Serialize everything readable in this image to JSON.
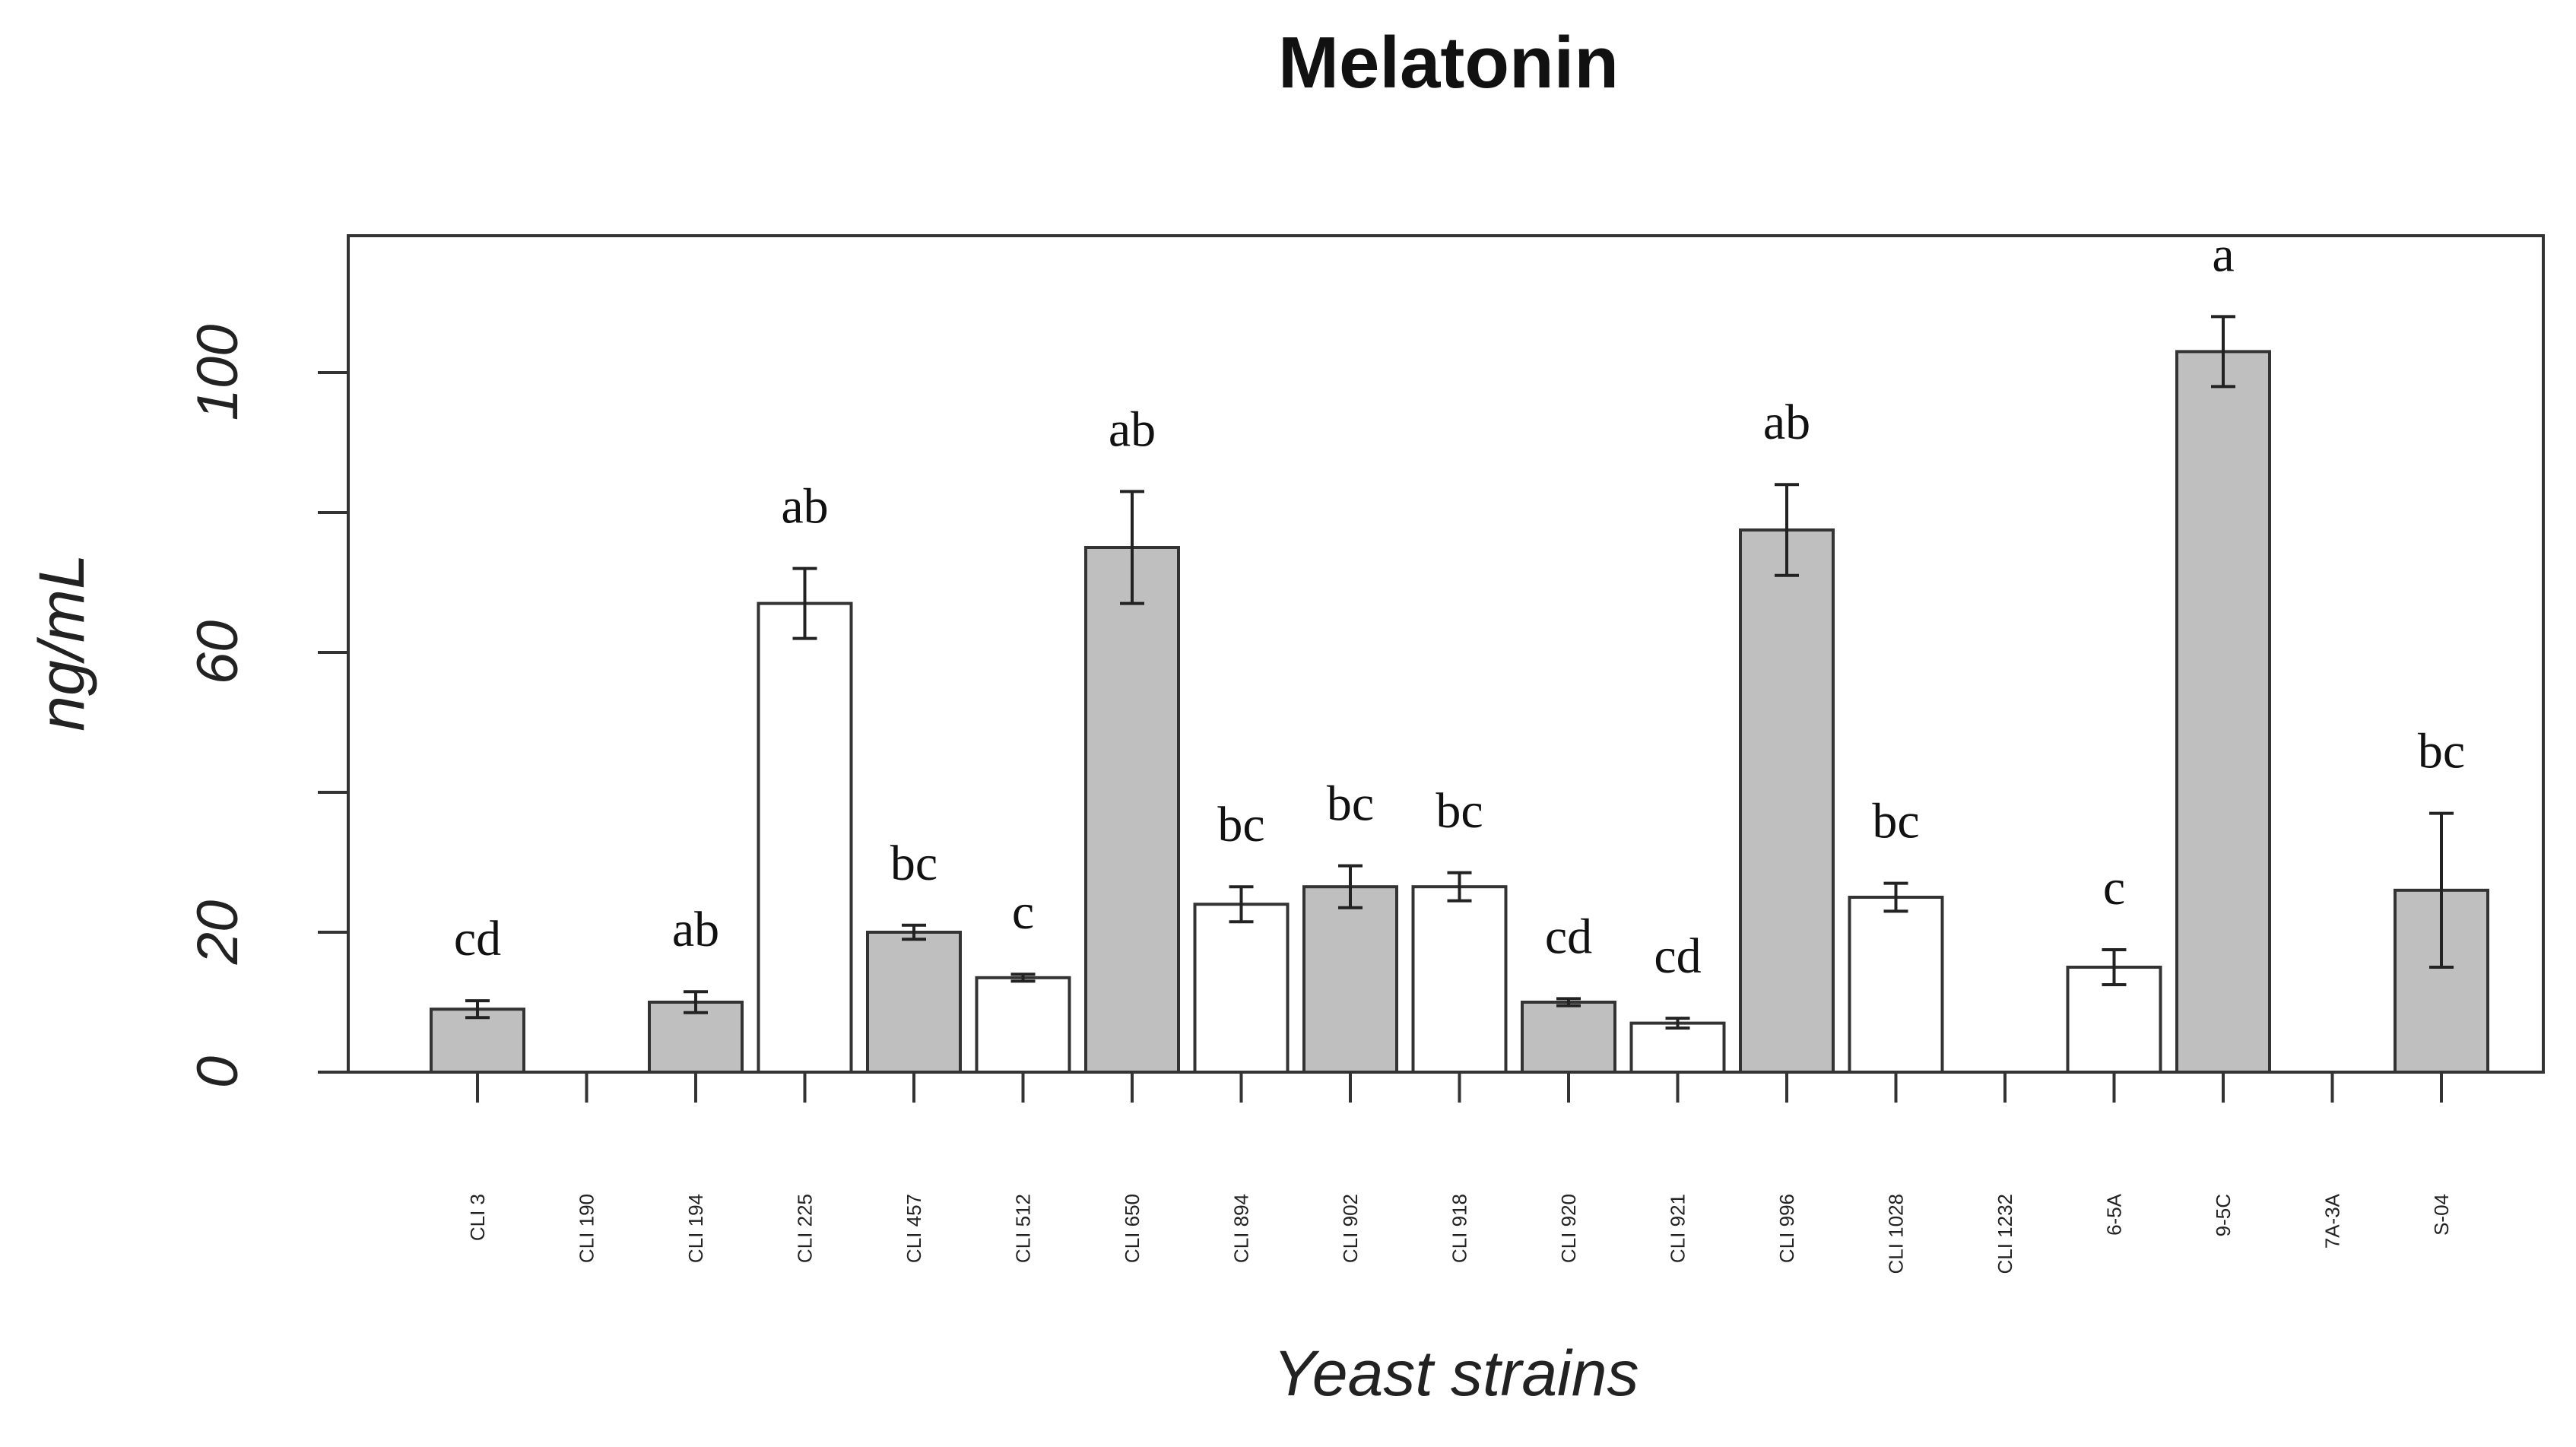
{
  "chart_data": {
    "type": "bar",
    "title": "Melatonin",
    "xlabel": "Yeast strains",
    "ylabel": "ng/mL",
    "ylim": [
      0,
      120
    ],
    "yticks": [
      "0",
      "20",
      "60",
      "100"
    ],
    "categories": [
      "CLI 3",
      "CLI 190",
      "CLI 194",
      "CLI 225",
      "CLI 457",
      "CLI 512",
      "CLI 650",
      "CLI 894",
      "CLI 902",
      "CLI 918",
      "CLI 920",
      "CLI 921",
      "CLI 996",
      "CLI 1028",
      "CLI 1232",
      "6-5A",
      "9-5C",
      "7A-3A",
      "S-04"
    ],
    "values": [
      9,
      null,
      10,
      67,
      20,
      13.5,
      75,
      24,
      26.5,
      26.5,
      10,
      7,
      77.5,
      25,
      null,
      15,
      103,
      null,
      26
    ],
    "errors": [
      1.2,
      null,
      1.5,
      5,
      1,
      0.5,
      8,
      2.5,
      3,
      2,
      0.5,
      0.7,
      6.5,
      2,
      null,
      2.5,
      5,
      null,
      11
    ],
    "letters": [
      "cd",
      "",
      "ab",
      "ab",
      "bc",
      "c",
      "ab",
      "bc",
      "bc",
      "bc",
      "cd",
      "cd",
      "ab",
      "bc",
      "",
      "c",
      "a",
      "",
      "bc"
    ],
    "fills": [
      "#bfbfbf",
      "#bfbfbf",
      "#bfbfbf",
      "#ffffff",
      "#bfbfbf",
      "#ffffff",
      "#bfbfbf",
      "#ffffff",
      "#bfbfbf",
      "#ffffff",
      "#bfbfbf",
      "#ffffff",
      "#bfbfbf",
      "#ffffff",
      "#ffffff",
      "#ffffff",
      "#bfbfbf",
      "#ffffff",
      "#bfbfbf"
    ]
  }
}
